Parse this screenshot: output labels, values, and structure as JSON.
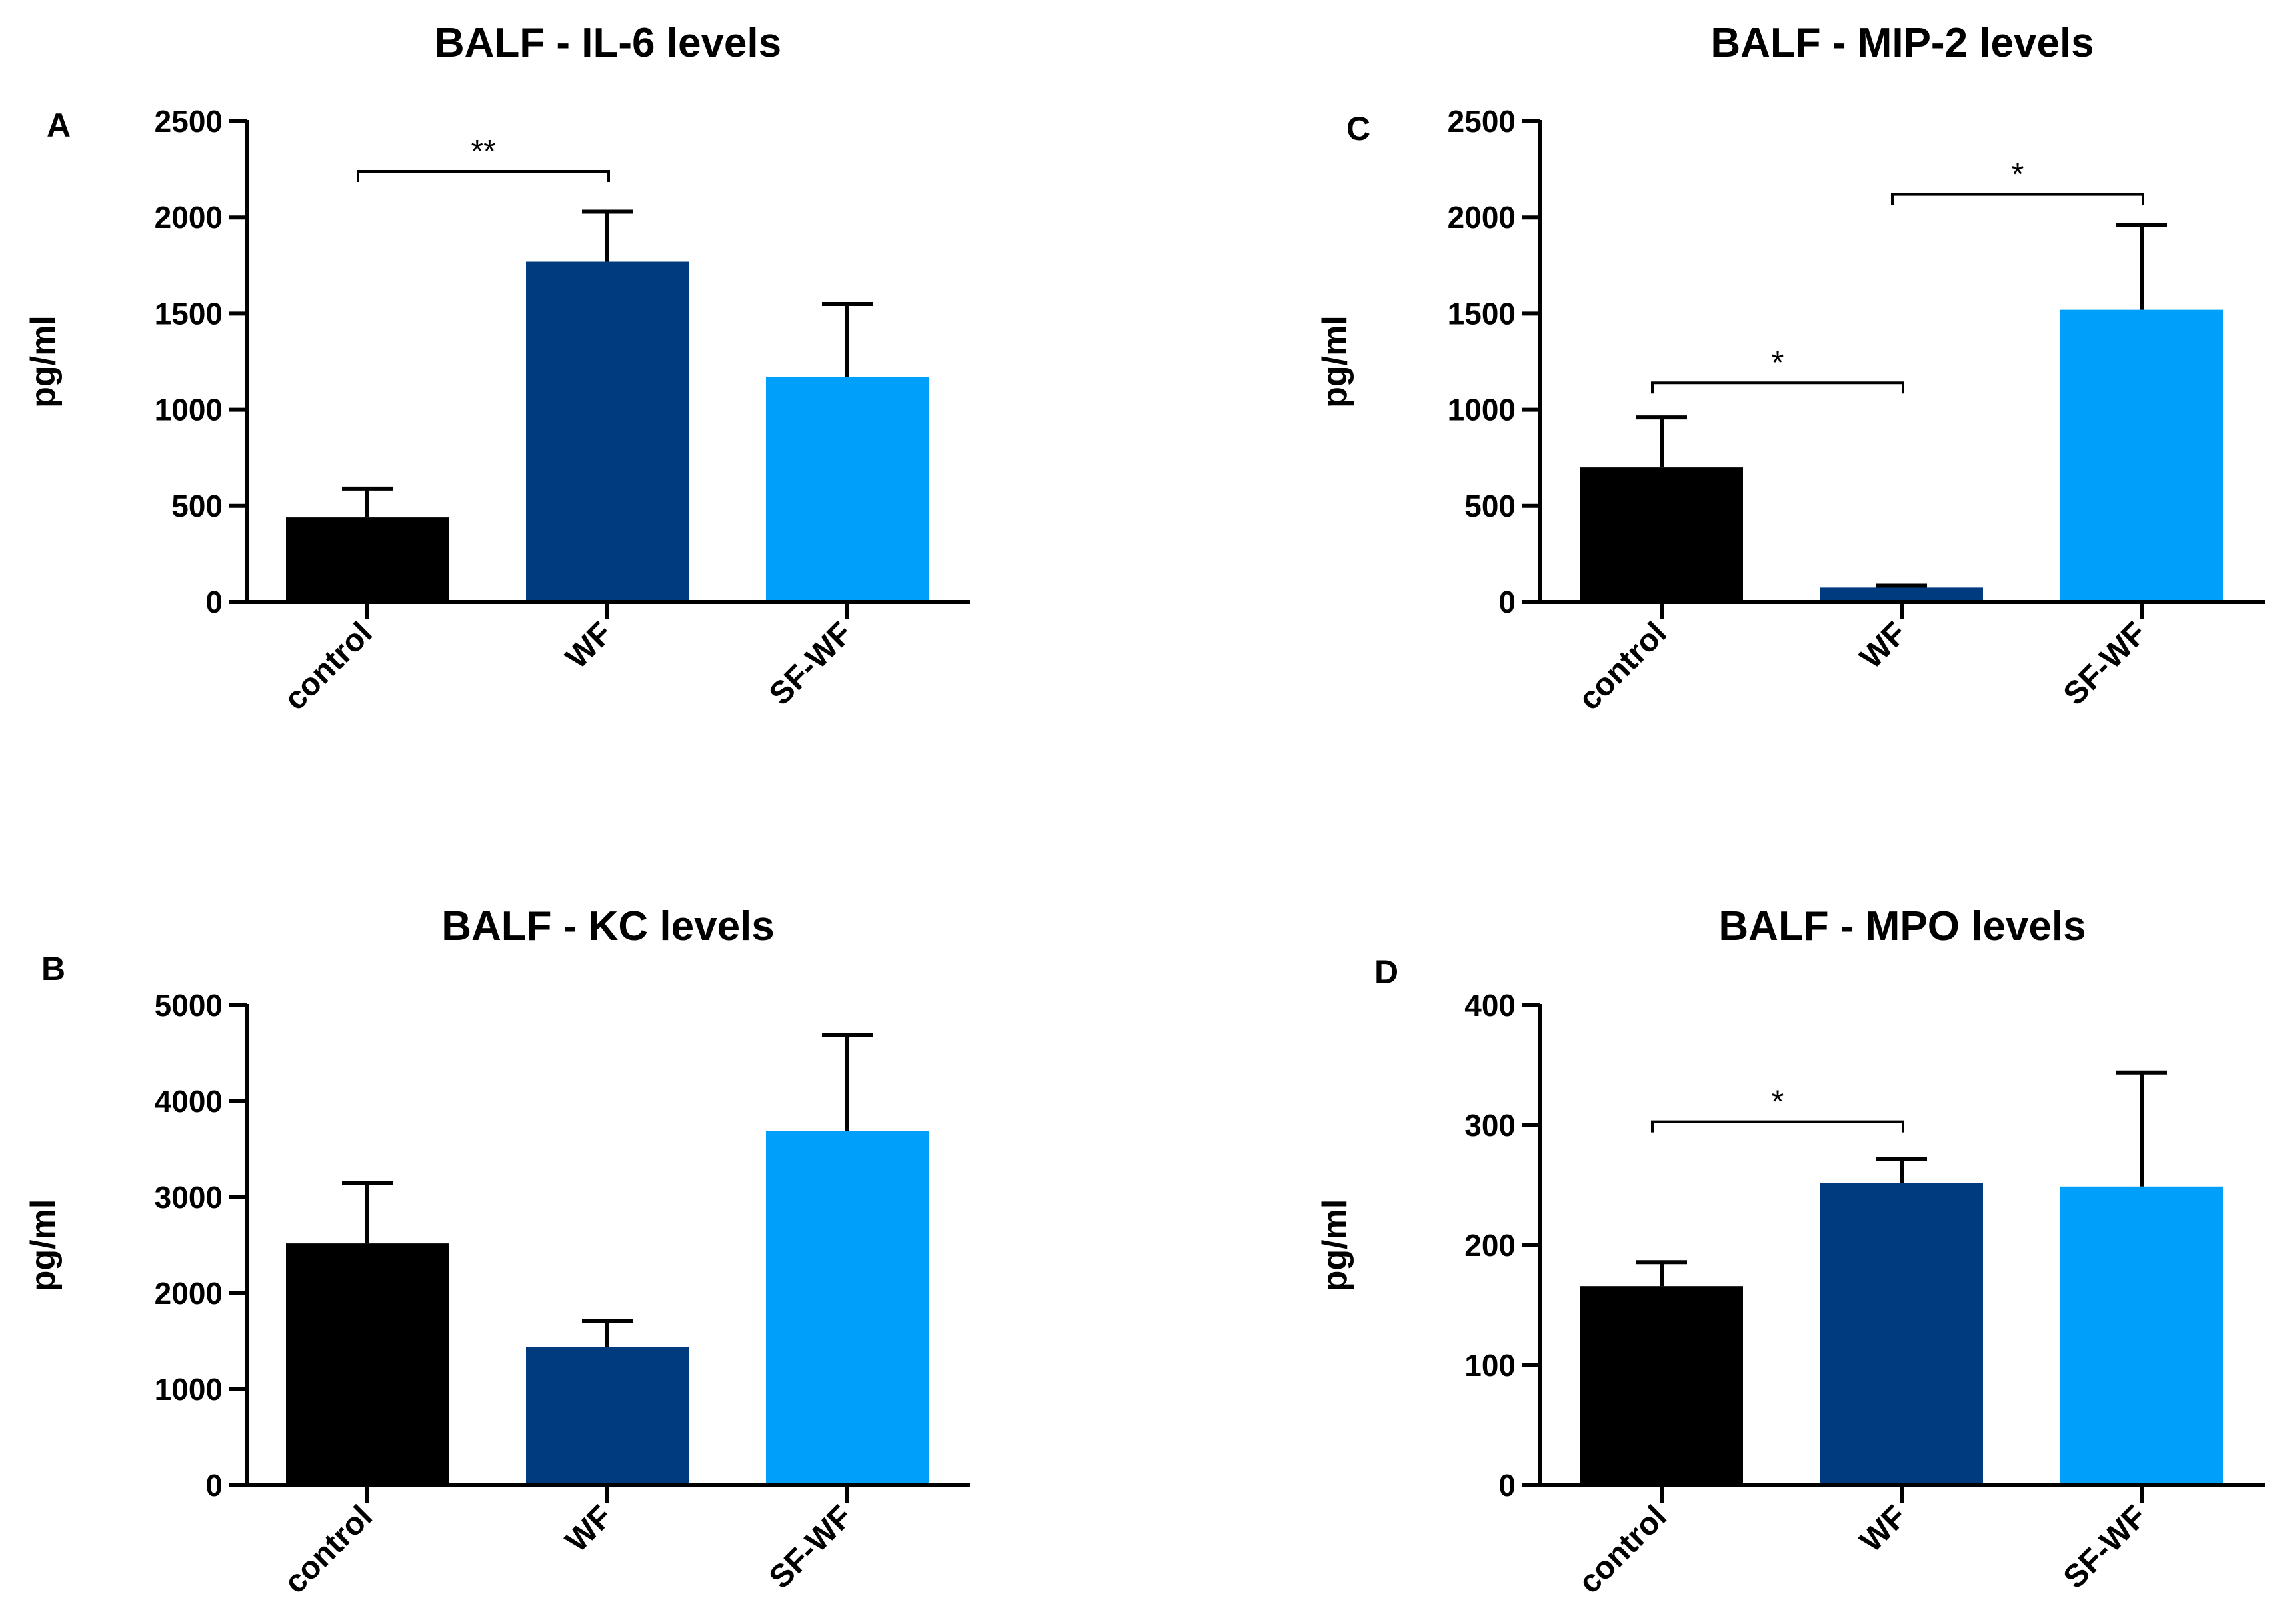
{
  "chart_data": [
    {
      "type": "bar",
      "panel": "A",
      "title": "BALF - IL-6 levels",
      "ylabel": "pg/ml",
      "xlabel": "",
      "categories": [
        "control",
        "WF",
        "SF-WF"
      ],
      "values": [
        440,
        1770,
        1170
      ],
      "error_upper": [
        590,
        2030,
        1550
      ],
      "ylim": [
        0,
        2500
      ],
      "yticks": [
        0,
        500,
        1000,
        1500,
        2000,
        2500
      ],
      "colors": [
        "#000000",
        "#003B7F",
        "#00A0FA"
      ],
      "significance": [
        {
          "from": 0,
          "to": 1,
          "label": "**",
          "y": 2240
        }
      ]
    },
    {
      "type": "bar",
      "panel": "C",
      "title": "BALF - MIP-2 levels",
      "ylabel": "pg/ml",
      "xlabel": "",
      "categories": [
        "control",
        "WF",
        "SF-WF"
      ],
      "values": [
        700,
        75,
        1520
      ],
      "error_upper": [
        960,
        85,
        1960
      ],
      "ylim": [
        0,
        2500
      ],
      "yticks": [
        0,
        500,
        1000,
        1500,
        2000,
        2500
      ],
      "colors": [
        "#000000",
        "#003B7F",
        "#00A0FA"
      ],
      "significance": [
        {
          "from": 0,
          "to": 1,
          "label": "*",
          "y": 1140
        },
        {
          "from": 1,
          "to": 2,
          "label": "*",
          "y": 2120
        }
      ]
    },
    {
      "type": "bar",
      "panel": "B",
      "title": "BALF -  KC levels",
      "ylabel": "pg/ml",
      "xlabel": "",
      "categories": [
        "control",
        "WF",
        "SF-WF"
      ],
      "values": [
        2520,
        1440,
        3690
      ],
      "error_upper": [
        3150,
        1710,
        4690
      ],
      "ylim": [
        0,
        5000
      ],
      "yticks": [
        0,
        1000,
        2000,
        3000,
        4000,
        5000
      ],
      "colors": [
        "#000000",
        "#003B7F",
        "#00A0FA"
      ],
      "significance": []
    },
    {
      "type": "bar",
      "panel": "D",
      "title": "BALF - MPO levels",
      "ylabel": "pg/ml",
      "xlabel": "",
      "categories": [
        "control",
        "WF",
        "SF-WF"
      ],
      "values": [
        166,
        252,
        249
      ],
      "error_upper": [
        186,
        272,
        344
      ],
      "ylim": [
        0,
        400
      ],
      "yticks": [
        0,
        100,
        200,
        300,
        400
      ],
      "colors": [
        "#000000",
        "#003B7F",
        "#00A0FA"
      ],
      "significance": [
        {
          "from": 0,
          "to": 1,
          "label": "*",
          "y": 303
        }
      ]
    }
  ]
}
